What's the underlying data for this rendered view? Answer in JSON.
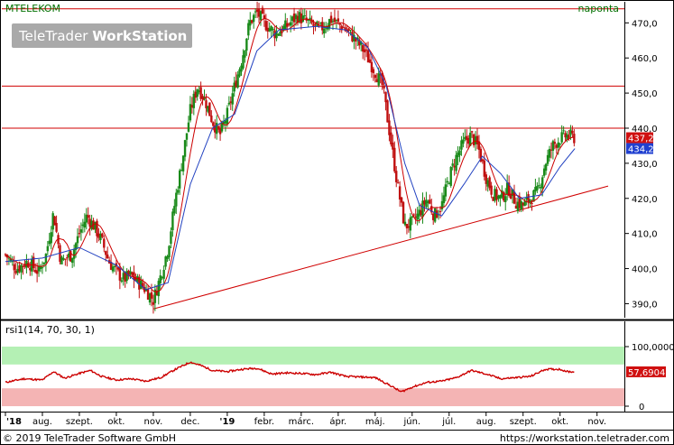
{
  "chart_data": {
    "type": "candlestick",
    "symbol": "MTELEKOM",
    "period": "naponta",
    "watermark": {
      "text_light": "TeleTrader ",
      "text_bold": "WorkStation"
    },
    "copyright": "© 2019 TeleTrader Software GmbH",
    "url": "https://workstation.teletrader.com",
    "x_axis": {
      "labels": [
        "'18",
        "aug.",
        "szept.",
        "okt.",
        "nov.",
        "dec.",
        "'19",
        "febr.",
        "márc.",
        "ápr.",
        "máj.",
        "jún.",
        "júl.",
        "aug.",
        "szept.",
        "okt.",
        "nov."
      ],
      "label_positions_month_index": [
        0,
        1,
        2,
        3,
        4,
        5,
        6,
        7,
        8,
        9,
        10,
        11,
        12,
        13,
        14,
        15,
        16
      ]
    },
    "price_panel": {
      "ylim": [
        386,
        476
      ],
      "ticks": [
        "390,0",
        "400,0",
        "410,0",
        "420,0",
        "430,0",
        "440,0",
        "450,0",
        "460,0",
        "470,0"
      ],
      "tick_values": [
        390,
        400,
        410,
        420,
        430,
        440,
        450,
        460,
        470
      ],
      "last_price": "437,2",
      "ma_value": "434,2",
      "horizontal_lines": [
        474,
        452,
        440
      ],
      "trendline": {
        "from": {
          "x": 4.0,
          "y": 388.5
        },
        "to": {
          "x": 16.3,
          "y": 423.5
        }
      },
      "price_path": [
        [
          0.0,
          404
        ],
        [
          0.3,
          400
        ],
        [
          0.6,
          402
        ],
        [
          0.9,
          399
        ],
        [
          1.1,
          404
        ],
        [
          1.3,
          416
        ],
        [
          1.5,
          402
        ],
        [
          1.8,
          404
        ],
        [
          2.0,
          410
        ],
        [
          2.2,
          415
        ],
        [
          2.4,
          412
        ],
        [
          2.6,
          408
        ],
        [
          2.8,
          402
        ],
        [
          3.0,
          399
        ],
        [
          3.2,
          397
        ],
        [
          3.4,
          398
        ],
        [
          3.6,
          396
        ],
        [
          3.8,
          394
        ],
        [
          4.0,
          391
        ],
        [
          4.2,
          398
        ],
        [
          4.4,
          406
        ],
        [
          4.6,
          420
        ],
        [
          4.8,
          432
        ],
        [
          5.0,
          445
        ],
        [
          5.2,
          452
        ],
        [
          5.4,
          448
        ],
        [
          5.6,
          442
        ],
        [
          5.8,
          438
        ],
        [
          6.0,
          444
        ],
        [
          6.2,
          452
        ],
        [
          6.4,
          460
        ],
        [
          6.6,
          470
        ],
        [
          6.8,
          473
        ],
        [
          7.0,
          470
        ],
        [
          7.3,
          467
        ],
        [
          7.6,
          469
        ],
        [
          7.9,
          472
        ],
        [
          8.2,
          470
        ],
        [
          8.5,
          468
        ],
        [
          8.8,
          471
        ],
        [
          9.1,
          469
        ],
        [
          9.4,
          466
        ],
        [
          9.7,
          462
        ],
        [
          10.0,
          456
        ],
        [
          10.2,
          452
        ],
        [
          10.4,
          438
        ],
        [
          10.6,
          424
        ],
        [
          10.8,
          412
        ],
        [
          11.0,
          413
        ],
        [
          11.2,
          416
        ],
        [
          11.4,
          420
        ],
        [
          11.6,
          415
        ],
        [
          11.8,
          418
        ],
        [
          12.0,
          426
        ],
        [
          12.2,
          432
        ],
        [
          12.4,
          436
        ],
        [
          12.6,
          438
        ],
        [
          12.8,
          434
        ],
        [
          13.0,
          426
        ],
        [
          13.2,
          421
        ],
        [
          13.4,
          420
        ],
        [
          13.6,
          423
        ],
        [
          13.8,
          419
        ],
        [
          14.0,
          418
        ],
        [
          14.2,
          420
        ],
        [
          14.4,
          422
        ],
        [
          14.6,
          430
        ],
        [
          14.8,
          435
        ],
        [
          15.0,
          437
        ],
        [
          15.2,
          438
        ],
        [
          15.4,
          437.2
        ]
      ],
      "ma_path": [
        [
          0.0,
          402
        ],
        [
          1.0,
          403
        ],
        [
          2.0,
          406
        ],
        [
          3.0,
          401
        ],
        [
          3.8,
          394
        ],
        [
          4.4,
          396
        ],
        [
          5.0,
          424
        ],
        [
          5.6,
          440
        ],
        [
          6.2,
          444
        ],
        [
          6.8,
          462
        ],
        [
          7.4,
          468
        ],
        [
          8.4,
          469
        ],
        [
          9.2,
          468
        ],
        [
          9.8,
          463
        ],
        [
          10.3,
          452
        ],
        [
          10.8,
          430
        ],
        [
          11.2,
          418
        ],
        [
          11.8,
          415
        ],
        [
          12.4,
          424
        ],
        [
          12.9,
          432
        ],
        [
          13.4,
          427
        ],
        [
          13.9,
          420
        ],
        [
          14.5,
          421
        ],
        [
          15.0,
          429
        ],
        [
          15.4,
          434.2
        ]
      ]
    },
    "rsi_panel": {
      "label": "rsi1(14, 70, 30, 1)",
      "ylim": [
        0,
        100
      ],
      "ticks": [
        "100,0000",
        "0"
      ],
      "tick_values": [
        100,
        0
      ],
      "bands": {
        "upper": [
          70,
          100
        ],
        "lower": [
          0,
          30
        ]
      },
      "value": "57,6904",
      "series": [
        [
          0.0,
          40
        ],
        [
          0.5,
          46
        ],
        [
          1.0,
          44
        ],
        [
          1.3,
          58
        ],
        [
          1.6,
          47
        ],
        [
          2.0,
          55
        ],
        [
          2.3,
          60
        ],
        [
          2.6,
          50
        ],
        [
          3.0,
          44
        ],
        [
          3.4,
          46
        ],
        [
          3.8,
          42
        ],
        [
          4.2,
          48
        ],
        [
          4.6,
          62
        ],
        [
          5.0,
          74
        ],
        [
          5.3,
          68
        ],
        [
          5.6,
          60
        ],
        [
          6.0,
          58
        ],
        [
          6.4,
          62
        ],
        [
          6.8,
          64
        ],
        [
          7.2,
          54
        ],
        [
          7.6,
          56
        ],
        [
          8.0,
          55
        ],
        [
          8.4,
          53
        ],
        [
          8.8,
          57
        ],
        [
          9.2,
          50
        ],
        [
          9.6,
          49
        ],
        [
          10.0,
          48
        ],
        [
          10.4,
          35
        ],
        [
          10.7,
          24
        ],
        [
          11.0,
          32
        ],
        [
          11.4,
          40
        ],
        [
          11.8,
          42
        ],
        [
          12.2,
          48
        ],
        [
          12.6,
          60
        ],
        [
          13.0,
          54
        ],
        [
          13.4,
          46
        ],
        [
          13.8,
          48
        ],
        [
          14.2,
          50
        ],
        [
          14.6,
          62
        ],
        [
          15.0,
          62
        ],
        [
          15.2,
          58
        ],
        [
          15.4,
          57.69
        ]
      ]
    }
  }
}
